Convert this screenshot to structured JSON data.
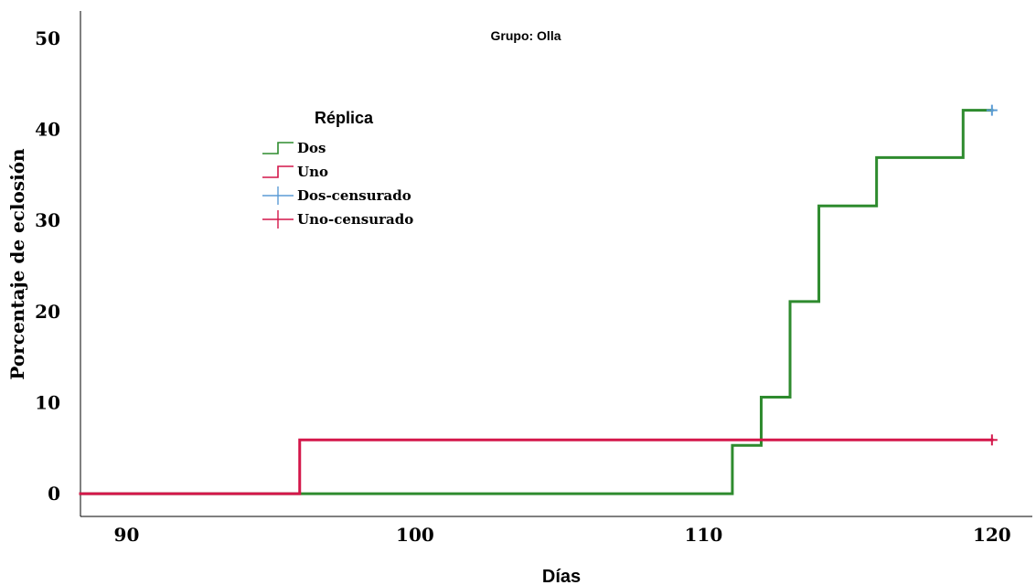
{
  "chart_data": {
    "type": "line",
    "subtype": "step",
    "title": "Grupo: Olla",
    "xlabel": "Días",
    "ylabel": "Porcentaje de eclosión",
    "xlim": [
      88.4,
      121.4
    ],
    "ylim": [
      -2.5,
      53
    ],
    "xticks": [
      90,
      100,
      110,
      120
    ],
    "yticks": [
      0,
      10,
      20,
      30,
      40,
      50
    ],
    "grid": false,
    "legend": {
      "title": "Réplica",
      "position": "top-left",
      "entries": [
        {
          "label": "Dos",
          "kind": "step",
          "color": "#2e8b2e"
        },
        {
          "label": "Uno",
          "kind": "step",
          "color": "#d4174a"
        },
        {
          "label": "Dos-censurado",
          "kind": "cross",
          "color": "#5b9bd5"
        },
        {
          "label": "Uno-censurado",
          "kind": "cross",
          "color": "#d4174a"
        }
      ]
    },
    "series": [
      {
        "name": "Dos",
        "color": "#2e8b2e",
        "x": [
          88.4,
          111,
          112,
          113,
          114,
          116,
          119,
          120
        ],
        "y": [
          0,
          5.3,
          10.6,
          21.1,
          31.6,
          36.9,
          42.1,
          42.1
        ]
      },
      {
        "name": "Uno",
        "color": "#d4174a",
        "x": [
          88.4,
          96,
          120
        ],
        "y": [
          0,
          5.9,
          5.9
        ]
      }
    ],
    "censored": [
      {
        "series": "Dos-censurado",
        "color": "#5b9bd5",
        "x": 120,
        "y": 42.1
      },
      {
        "series": "Uno-censurado",
        "color": "#d4174a",
        "x": 120,
        "y": 5.9
      }
    ]
  }
}
